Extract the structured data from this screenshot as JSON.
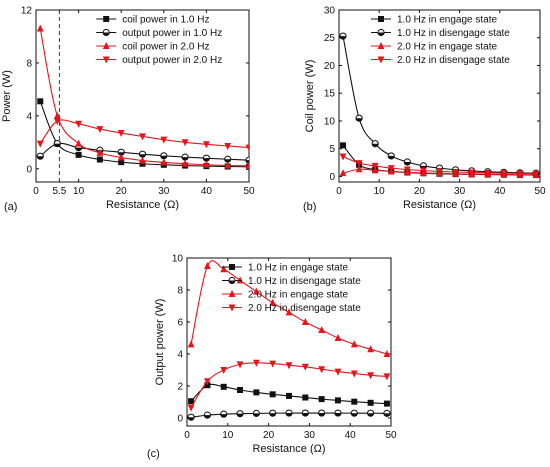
{
  "colors": {
    "black_series": "#111111",
    "red_series": "#e8141b",
    "axis": "#111111",
    "marker_line": "#3a3a66"
  },
  "chart_data": [
    {
      "panel": "(a)",
      "type": "line",
      "xlabel": "Resistance (Ω)",
      "ylabel": "Power (W)",
      "xlim": [
        0,
        50
      ],
      "ylim": [
        -1,
        12
      ],
      "xticks": [
        0,
        5.5,
        10,
        20,
        30,
        40,
        50
      ],
      "xtick_labels": [
        "0",
        "5.5",
        "10",
        "20",
        "30",
        "40",
        "50"
      ],
      "yticks": [
        0,
        4,
        8,
        12
      ],
      "grid": false,
      "legend_position": "top-right",
      "vline": 5.5,
      "series": [
        {
          "name": "coil power in 1.0 Hz",
          "color": "#111111",
          "marker": "square",
          "x": [
            1,
            5,
            10,
            15,
            20,
            25,
            30,
            35,
            40,
            45,
            50
          ],
          "y": [
            5.1,
            1.9,
            1.05,
            0.7,
            0.5,
            0.38,
            0.3,
            0.24,
            0.2,
            0.17,
            0.15
          ]
        },
        {
          "name": "output power in 1.0 Hz",
          "color": "#111111",
          "marker": "half-circle",
          "x": [
            1,
            5,
            10,
            15,
            20,
            25,
            30,
            35,
            40,
            45,
            50
          ],
          "y": [
            0.95,
            1.9,
            1.6,
            1.4,
            1.25,
            1.1,
            0.98,
            0.88,
            0.8,
            0.72,
            0.65
          ]
        },
        {
          "name": "coil power in 2.0 Hz",
          "color": "#e8141b",
          "marker": "triangle-up",
          "x": [
            1,
            5,
            10,
            15,
            20,
            25,
            30,
            35,
            40,
            45,
            50
          ],
          "y": [
            10.6,
            4.0,
            1.9,
            1.2,
            0.85,
            0.62,
            0.48,
            0.38,
            0.3,
            0.25,
            0.22
          ]
        },
        {
          "name": "output power in 2.0 Hz",
          "color": "#e8141b",
          "marker": "triangle-down",
          "x": [
            1,
            5,
            10,
            15,
            20,
            25,
            30,
            35,
            40,
            45,
            50
          ],
          "y": [
            1.9,
            3.6,
            3.4,
            3.0,
            2.7,
            2.45,
            2.2,
            2.0,
            1.85,
            1.72,
            1.6
          ]
        }
      ]
    },
    {
      "panel": "(b)",
      "type": "line",
      "xlabel": "Resistance (Ω)",
      "ylabel": "Coil power (W)",
      "xlim": [
        0,
        50
      ],
      "ylim": [
        -1,
        30
      ],
      "xticks": [
        0,
        10,
        20,
        30,
        40,
        50
      ],
      "xtick_labels": [
        "0",
        "10",
        "20",
        "30",
        "40",
        "50"
      ],
      "yticks": [
        0,
        5,
        10,
        15,
        20,
        25,
        30
      ],
      "grid": false,
      "legend_position": "top-right",
      "series": [
        {
          "name": "1.0 Hz in engage state",
          "color": "#111111",
          "marker": "square",
          "x": [
            1,
            5,
            9,
            13,
            17,
            21,
            25,
            29,
            33,
            37,
            41,
            45,
            49
          ],
          "y": [
            5.6,
            2.1,
            1.25,
            0.9,
            0.7,
            0.57,
            0.48,
            0.42,
            0.37,
            0.33,
            0.3,
            0.27,
            0.25
          ]
        },
        {
          "name": "1.0 Hz in disengage state",
          "color": "#111111",
          "marker": "half-circle",
          "x": [
            1,
            5,
            9,
            13,
            17,
            21,
            25,
            29,
            33,
            37,
            41,
            45,
            49
          ],
          "y": [
            25.3,
            10.5,
            5.9,
            3.7,
            2.6,
            1.9,
            1.5,
            1.2,
            1.0,
            0.85,
            0.75,
            0.65,
            0.58
          ]
        },
        {
          "name": "2.0 Hz in engage state",
          "color": "#e8141b",
          "marker": "triangle-up",
          "x": [
            1,
            5,
            9,
            13,
            17,
            21,
            25,
            29,
            33,
            37,
            41,
            45,
            49
          ],
          "y": [
            0.6,
            1.3,
            1.1,
            0.9,
            0.75,
            0.63,
            0.55,
            0.48,
            0.43,
            0.39,
            0.35,
            0.32,
            0.3
          ]
        },
        {
          "name": "2.0 Hz in disengage state",
          "color": "#e8141b",
          "marker": "triangle-down",
          "x": [
            1,
            5,
            9,
            13,
            17,
            21,
            25,
            29,
            33,
            37,
            41,
            45,
            49
          ],
          "y": [
            3.6,
            2.4,
            1.9,
            1.5,
            1.25,
            1.05,
            0.9,
            0.8,
            0.72,
            0.65,
            0.6,
            0.55,
            0.5
          ]
        }
      ]
    },
    {
      "panel": "(c)",
      "type": "line",
      "xlabel": "Resistance (Ω)",
      "ylabel": "Output power (W)",
      "xlim": [
        0,
        50
      ],
      "ylim": [
        -0.5,
        10
      ],
      "xticks": [
        0,
        10,
        20,
        30,
        40,
        50
      ],
      "xtick_labels": [
        "0",
        "10",
        "20",
        "30",
        "40",
        "50"
      ],
      "yticks": [
        0,
        2,
        4,
        6,
        8,
        10
      ],
      "grid": false,
      "legend_position": "top-right",
      "series": [
        {
          "name": "1.0 Hz in engage state",
          "color": "#111111",
          "marker": "square",
          "x": [
            1,
            5,
            9,
            13,
            17,
            21,
            25,
            29,
            33,
            37,
            41,
            45,
            49
          ],
          "y": [
            1.05,
            2.05,
            1.95,
            1.75,
            1.6,
            1.48,
            1.38,
            1.28,
            1.18,
            1.1,
            1.02,
            0.95,
            0.9
          ]
        },
        {
          "name": "1.0 Hz in disengage state",
          "color": "#111111",
          "marker": "half-circle",
          "x": [
            1,
            5,
            9,
            13,
            17,
            21,
            25,
            29,
            33,
            37,
            41,
            45,
            49
          ],
          "y": [
            0.05,
            0.18,
            0.24,
            0.27,
            0.29,
            0.3,
            0.31,
            0.31,
            0.31,
            0.31,
            0.3,
            0.3,
            0.29
          ]
        },
        {
          "name": "2.0 Hz in engage state",
          "color": "#e8141b",
          "marker": "triangle-up",
          "x": [
            1,
            5,
            9,
            13,
            17,
            21,
            25,
            29,
            33,
            37,
            41,
            45,
            49
          ],
          "y": [
            4.6,
            9.5,
            9.3,
            8.6,
            7.9,
            7.2,
            6.6,
            6.0,
            5.5,
            5.0,
            4.6,
            4.3,
            4.0
          ]
        },
        {
          "name": "2.0 Hz in disengage state",
          "color": "#e8141b",
          "marker": "triangle-down",
          "x": [
            1,
            5,
            9,
            13,
            17,
            21,
            25,
            29,
            33,
            37,
            41,
            45,
            49
          ],
          "y": [
            0.65,
            2.3,
            3.0,
            3.35,
            3.45,
            3.4,
            3.3,
            3.2,
            3.05,
            2.9,
            2.78,
            2.67,
            2.6
          ]
        }
      ]
    }
  ]
}
